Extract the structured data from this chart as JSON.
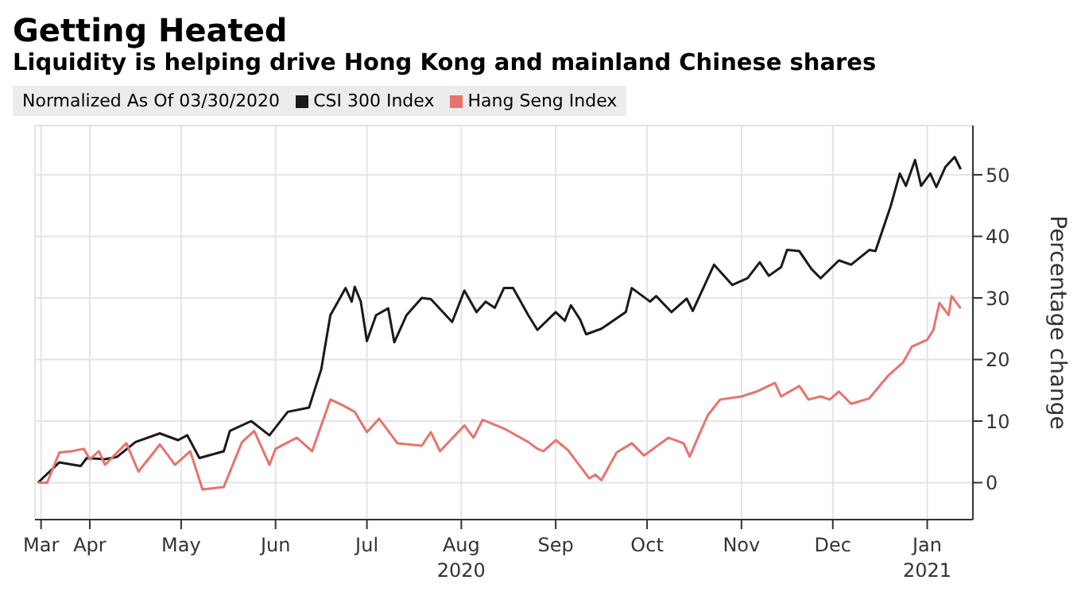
{
  "chart_data": {
    "type": "line",
    "title": "Getting Heated",
    "subtitle": "Liquidity is helping drive Hong Kong and mainland Chinese shares",
    "legend_title": "Normalized As Of 03/30/2020",
    "ylabel": "Percentage change",
    "legend": "top left",
    "grid": true,
    "xlim": [
      "2020-03-29",
      "2021-01-31"
    ],
    "xticks": [
      {
        "value": "2020-03-31",
        "label": "Mar"
      },
      {
        "value": "2020-04-16",
        "label": "Apr"
      },
      {
        "value": "2020-05-16",
        "label": "May"
      },
      {
        "value": "2020-06-16",
        "label": "Jun"
      },
      {
        "value": "2020-07-16",
        "label": "Jul"
      },
      {
        "value": "2020-08-16",
        "label": "Aug 2020"
      },
      {
        "value": "2020-09-16",
        "label": "Sep"
      },
      {
        "value": "2020-10-16",
        "label": "Oct"
      },
      {
        "value": "2020-11-16",
        "label": "Nov"
      },
      {
        "value": "2020-12-16",
        "label": "Dec"
      },
      {
        "value": "2021-01-16",
        "label": "Jan 2021"
      }
    ],
    "ylim": [
      -6,
      58
    ],
    "yticks": [
      0,
      10,
      20,
      30,
      40,
      50
    ],
    "series": [
      {
        "name": "CSI 300 Index",
        "color": "#1a1a1a",
        "x": [
          "2020-03-30",
          "2020-04-06",
          "2020-04-13",
          "2020-04-15",
          "2020-04-21",
          "2020-04-25",
          "2020-05-01",
          "2020-05-09",
          "2020-05-15",
          "2020-05-18",
          "2020-05-22",
          "2020-05-30",
          "2020-06-01",
          "2020-06-08",
          "2020-06-14",
          "2020-06-20",
          "2020-06-27",
          "2020-07-01",
          "2020-07-04",
          "2020-07-09",
          "2020-07-11",
          "2020-07-12",
          "2020-07-14",
          "2020-07-16",
          "2020-07-19",
          "2020-07-23",
          "2020-07-25",
          "2020-07-29",
          "2020-08-03",
          "2020-08-06",
          "2020-08-13",
          "2020-08-17",
          "2020-08-21",
          "2020-08-24",
          "2020-08-27",
          "2020-08-30",
          "2020-09-02",
          "2020-09-07",
          "2020-09-10",
          "2020-09-16",
          "2020-09-19",
          "2020-09-21",
          "2020-09-24",
          "2020-09-26",
          "2020-10-01",
          "2020-10-09",
          "2020-10-11",
          "2020-10-14",
          "2020-10-17",
          "2020-10-19",
          "2020-10-24",
          "2020-10-29",
          "2020-10-31",
          "2020-11-07",
          "2020-11-13",
          "2020-11-18",
          "2020-11-22",
          "2020-11-25",
          "2020-11-29",
          "2020-12-01",
          "2020-12-05",
          "2020-12-09",
          "2020-12-12",
          "2020-12-18",
          "2020-12-22",
          "2020-12-28",
          "2020-12-30",
          "2021-01-04",
          "2021-01-07",
          "2021-01-09",
          "2021-01-12",
          "2021-01-14",
          "2021-01-17",
          "2021-01-19",
          "2021-01-22",
          "2021-01-25",
          "2021-01-27"
        ],
        "values": [
          0,
          3.3,
          2.7,
          4.0,
          3.8,
          4.2,
          6.6,
          8.0,
          6.9,
          7.7,
          4.0,
          5.1,
          8.4,
          10.0,
          7.7,
          11.5,
          12.2,
          18.4,
          27.2,
          31.6,
          29.4,
          31.8,
          29.4,
          23.0,
          27.2,
          28.3,
          22.8,
          27.2,
          30.0,
          29.8,
          26.1,
          31.2,
          27.7,
          29.4,
          28.4,
          31.6,
          31.6,
          27.2,
          24.8,
          27.7,
          26.3,
          28.8,
          26.5,
          24.1,
          25.0,
          27.7,
          31.6,
          30.5,
          29.4,
          30.3,
          27.7,
          29.9,
          27.9,
          35.4,
          32.1,
          33.2,
          35.8,
          33.6,
          35.0,
          37.8,
          37.6,
          34.7,
          33.2,
          36.1,
          35.4,
          37.8,
          37.6,
          44.9,
          50.2,
          48.2,
          52.4,
          48.2,
          50.2,
          48.0,
          51.3,
          52.9,
          50.9
        ]
      },
      {
        "name": "Hang Seng Index",
        "color": "#e8736c",
        "x": [
          "2020-03-30",
          "2020-04-02",
          "2020-04-06",
          "2020-04-10",
          "2020-04-14",
          "2020-04-16",
          "2020-04-19",
          "2020-04-21",
          "2020-04-28",
          "2020-05-02",
          "2020-05-09",
          "2020-05-14",
          "2020-05-19",
          "2020-05-23",
          "2020-05-30",
          "2020-06-05",
          "2020-06-09",
          "2020-06-14",
          "2020-06-16",
          "2020-06-23",
          "2020-06-28",
          "2020-07-04",
          "2020-07-08",
          "2020-07-12",
          "2020-07-16",
          "2020-07-20",
          "2020-07-26",
          "2020-08-03",
          "2020-08-06",
          "2020-08-09",
          "2020-08-17",
          "2020-08-20",
          "2020-08-23",
          "2020-08-30",
          "2020-09-07",
          "2020-09-10",
          "2020-09-12",
          "2020-09-16",
          "2020-09-20",
          "2020-09-27",
          "2020-09-29",
          "2020-10-01",
          "2020-10-06",
          "2020-10-11",
          "2020-10-15",
          "2020-10-23",
          "2020-10-28",
          "2020-10-30",
          "2020-11-02",
          "2020-11-05",
          "2020-11-09",
          "2020-11-16",
          "2020-11-21",
          "2020-11-27",
          "2020-11-29",
          "2020-12-05",
          "2020-12-08",
          "2020-12-12",
          "2020-12-15",
          "2020-12-18",
          "2020-12-22",
          "2020-12-28",
          "2021-01-03",
          "2021-01-08",
          "2021-01-11",
          "2021-01-16",
          "2021-01-18",
          "2021-01-20",
          "2021-01-23",
          "2021-01-24",
          "2021-01-27"
        ],
        "values": [
          0,
          0,
          4.9,
          5.1,
          5.5,
          3.8,
          5.1,
          2.9,
          6.4,
          1.8,
          6.2,
          2.9,
          5.1,
          -1.1,
          -0.7,
          6.6,
          8.4,
          2.9,
          5.5,
          7.3,
          5.1,
          13.5,
          12.6,
          11.5,
          8.2,
          10.4,
          6.4,
          6.0,
          8.2,
          5.1,
          9.3,
          7.3,
          10.2,
          8.8,
          6.6,
          5.5,
          5.1,
          6.9,
          5.3,
          0.7,
          1.3,
          0.4,
          4.9,
          6.4,
          4.4,
          7.3,
          6.4,
          4.2,
          7.7,
          11.0,
          13.5,
          14.0,
          14.8,
          16.2,
          14.0,
          15.7,
          13.5,
          14.0,
          13.5,
          14.8,
          12.8,
          13.7,
          17.3,
          19.5,
          22.1,
          23.2,
          24.8,
          29.2,
          27.2,
          30.3,
          28.3
        ]
      }
    ]
  }
}
